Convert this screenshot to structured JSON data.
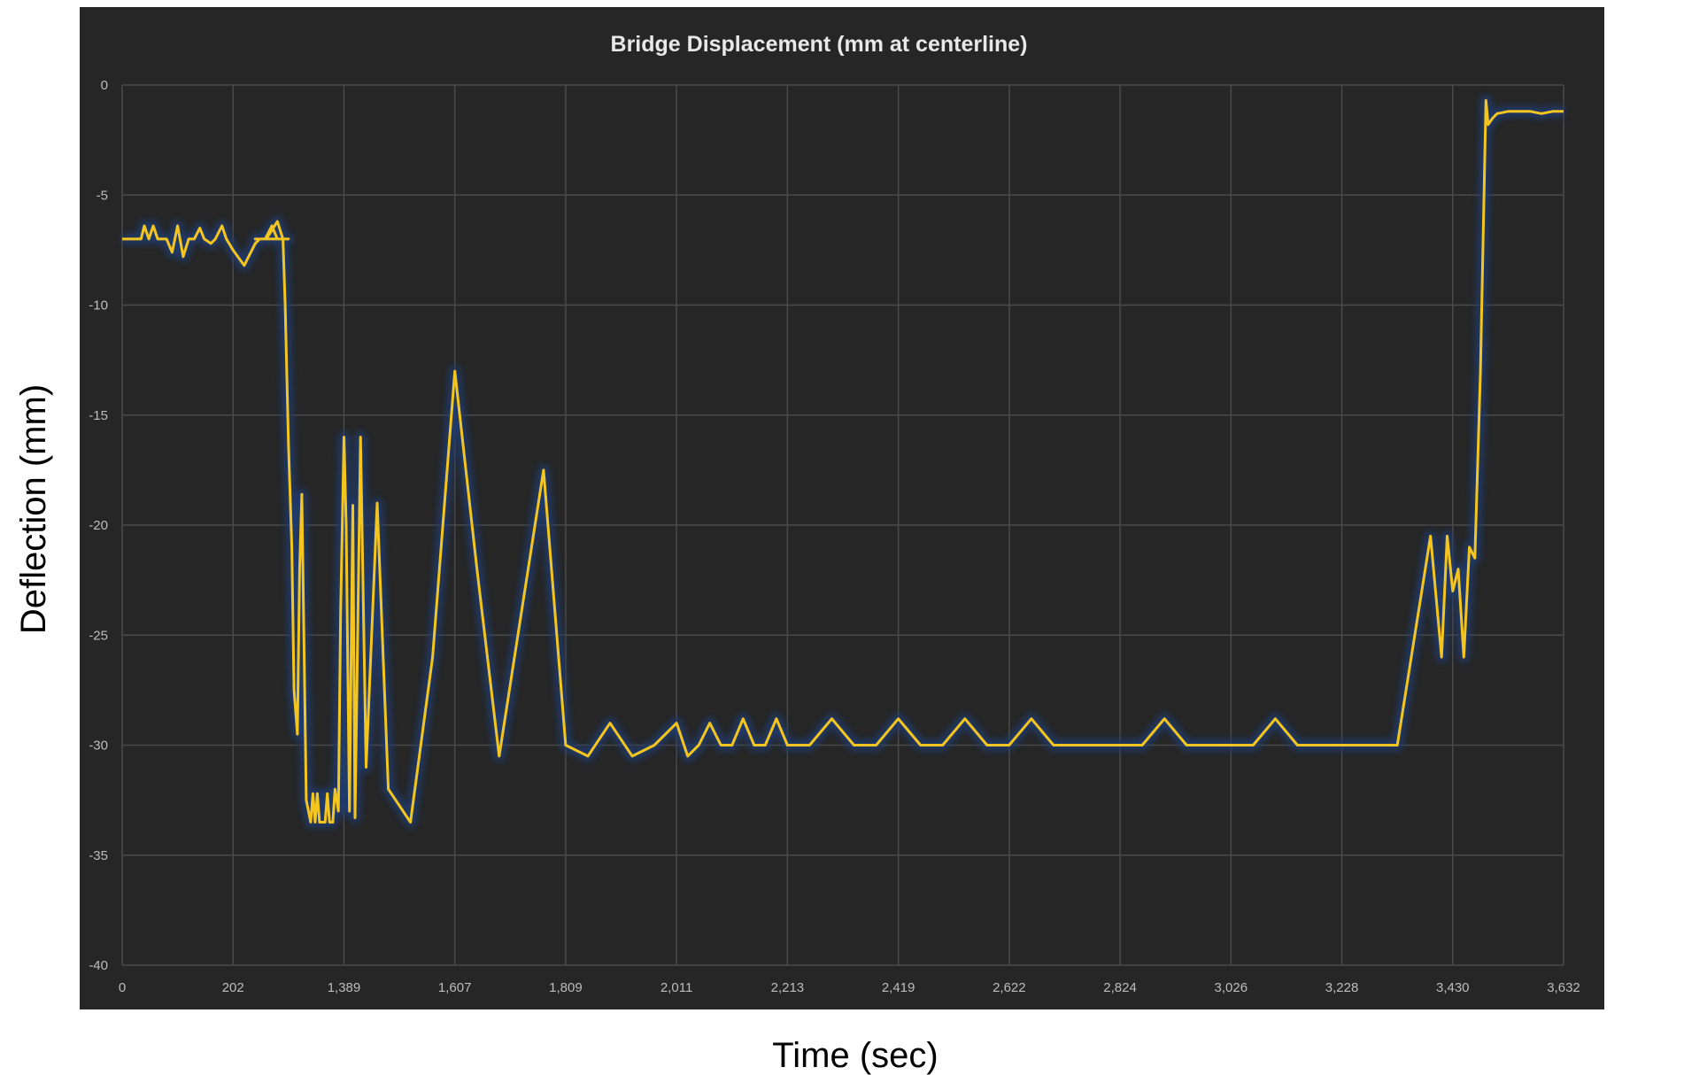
{
  "chart_data": {
    "type": "line",
    "title": "Bridge Displacement (mm at centerline)",
    "xlabel": "Time (sec)",
    "ylabel": "Deflection (mm)",
    "x_tick_labels": [
      "0",
      "202",
      "1,389",
      "1,607",
      "1,809",
      "2,011",
      "2,213",
      "2,419",
      "2,622",
      "2,824",
      "3,026",
      "3,228",
      "3,430",
      "3,632"
    ],
    "y_ticks": [
      0,
      -5,
      -10,
      -15,
      -20,
      -25,
      -30,
      -35,
      -40
    ],
    "ylim": [
      -40,
      0
    ],
    "grid": true,
    "legend": "none",
    "colors": {
      "background": "#262626",
      "line": "#f5c51f",
      "glow": "#1e3a70",
      "grid": "#4a4a4a",
      "tick_text": "#bdbdbd",
      "title_text": "#e8e8e8"
    },
    "series": [
      {
        "x": [
          0,
          0.1,
          0.17,
          0.2,
          0.24,
          0.28,
          0.32,
          0.36,
          0.4,
          0.45,
          0.5,
          0.55,
          0.6,
          0.65,
          0.7,
          0.74,
          0.8,
          0.84,
          0.9,
          0.94,
          1.0,
          1.1,
          1.2,
          1.24,
          1.29,
          1.35,
          1.4,
          1.46,
          1.5,
          1.2,
          1.3,
          1.4,
          1.45,
          1.47,
          1.5,
          1.53,
          1.55,
          1.58,
          1.6,
          1.62,
          1.64,
          1.66,
          1.7,
          1.72,
          1.74,
          1.76,
          1.78,
          1.8,
          1.83,
          1.85,
          1.87,
          1.88,
          1.9,
          1.92,
          1.95,
          1.97,
          2.0,
          2.02,
          2.05,
          2.08,
          2.1,
          2.15,
          2.2,
          2.3,
          2.4,
          2.6,
          2.8,
          3.0,
          3.2,
          3.4,
          3.6,
          3.8,
          4.0,
          4.2,
          4.4,
          4.6,
          4.8,
          5.0,
          5.1,
          5.2,
          5.3,
          5.4,
          5.5,
          5.6,
          5.7,
          5.8,
          5.9,
          6.0,
          6.2,
          6.4,
          6.6,
          6.8,
          7.0,
          7.2,
          7.4,
          7.6,
          7.8,
          8.0,
          8.2,
          8.4,
          8.6,
          8.8,
          9.0,
          9.2,
          9.4,
          9.6,
          9.8,
          10.0,
          10.2,
          10.4,
          10.6,
          10.8,
          11.0,
          11.2,
          11.5,
          11.8,
          11.9,
          11.95,
          12.0,
          12.05,
          12.1,
          12.15,
          12.2,
          12.25,
          12.3,
          12.32,
          12.36,
          12.4,
          12.5,
          12.6,
          12.7,
          12.8,
          12.9,
          13.0
        ],
        "y": [
          -7,
          -7,
          -7,
          -6.4,
          -7,
          -6.4,
          -7,
          -7,
          -7,
          -7.6,
          -6.4,
          -7.8,
          -7,
          -7,
          -6.5,
          -7,
          -7.2,
          -7,
          -6.4,
          -7,
          -7.5,
          -8.2,
          -7.2,
          -7,
          -7,
          -6.4,
          -7,
          -7,
          -7,
          -7,
          -7,
          -6.2,
          -7,
          -10,
          -16.3,
          -21,
          -27.5,
          -29.5,
          -22,
          -18.6,
          -25.5,
          -32.5,
          -33.5,
          -32.2,
          -33.5,
          -32.2,
          -33.5,
          -33.5,
          -33.5,
          -32.2,
          -33.5,
          -33.5,
          -33.5,
          -32,
          -33,
          -24,
          -16,
          -20,
          -33,
          -19.1,
          -33.3,
          -16,
          -31,
          -19,
          -32,
          -33.5,
          -26,
          -13,
          -22,
          -30.5,
          -24,
          -17.5,
          -30,
          -30.5,
          -29,
          -30.5,
          -30,
          -29,
          -30.5,
          -30,
          -29,
          -30,
          -30,
          -28.8,
          -30,
          -30,
          -28.8,
          -30,
          -30,
          -28.8,
          -30,
          -30,
          -28.8,
          -30,
          -30,
          -28.8,
          -30,
          -30,
          -28.8,
          -30,
          -30,
          -30,
          -30,
          -30,
          -28.8,
          -30,
          -30,
          -30,
          -30,
          -28.8,
          -30,
          -30,
          -30,
          -30,
          -30,
          -20.5,
          -26,
          -20.5,
          -23,
          -22,
          -26,
          -21,
          -21.5,
          -13,
          -0.7,
          -1.8,
          -1.5,
          -1.3,
          -1.2,
          -1.2,
          -1.2,
          -1.3,
          -1.2,
          -1.2
        ]
      }
    ]
  }
}
